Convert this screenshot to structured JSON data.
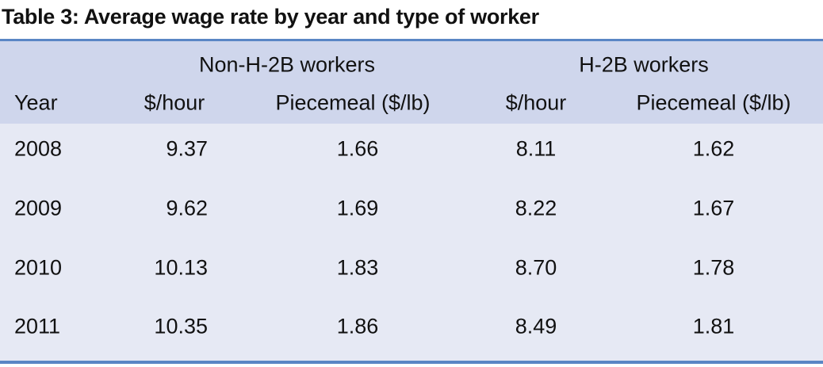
{
  "title": "Table 3: Average wage rate by year and type of worker",
  "table": {
    "group_headers": [
      "Non-H-2B workers",
      "H-2B workers"
    ],
    "columns": [
      "Year",
      "$/hour",
      "Piecemeal ($/lb)",
      "$/hour",
      "Piecemeal ($/lb)"
    ],
    "rows": [
      [
        "2008",
        "9.37",
        "1.66",
        "8.11",
        "1.62"
      ],
      [
        "2009",
        "9.62",
        "1.69",
        "8.22",
        "1.67"
      ],
      [
        "2010",
        "10.13",
        "1.83",
        "8.70",
        "1.78"
      ],
      [
        "2011",
        "10.35",
        "1.86",
        "8.49",
        "1.81"
      ]
    ]
  }
}
